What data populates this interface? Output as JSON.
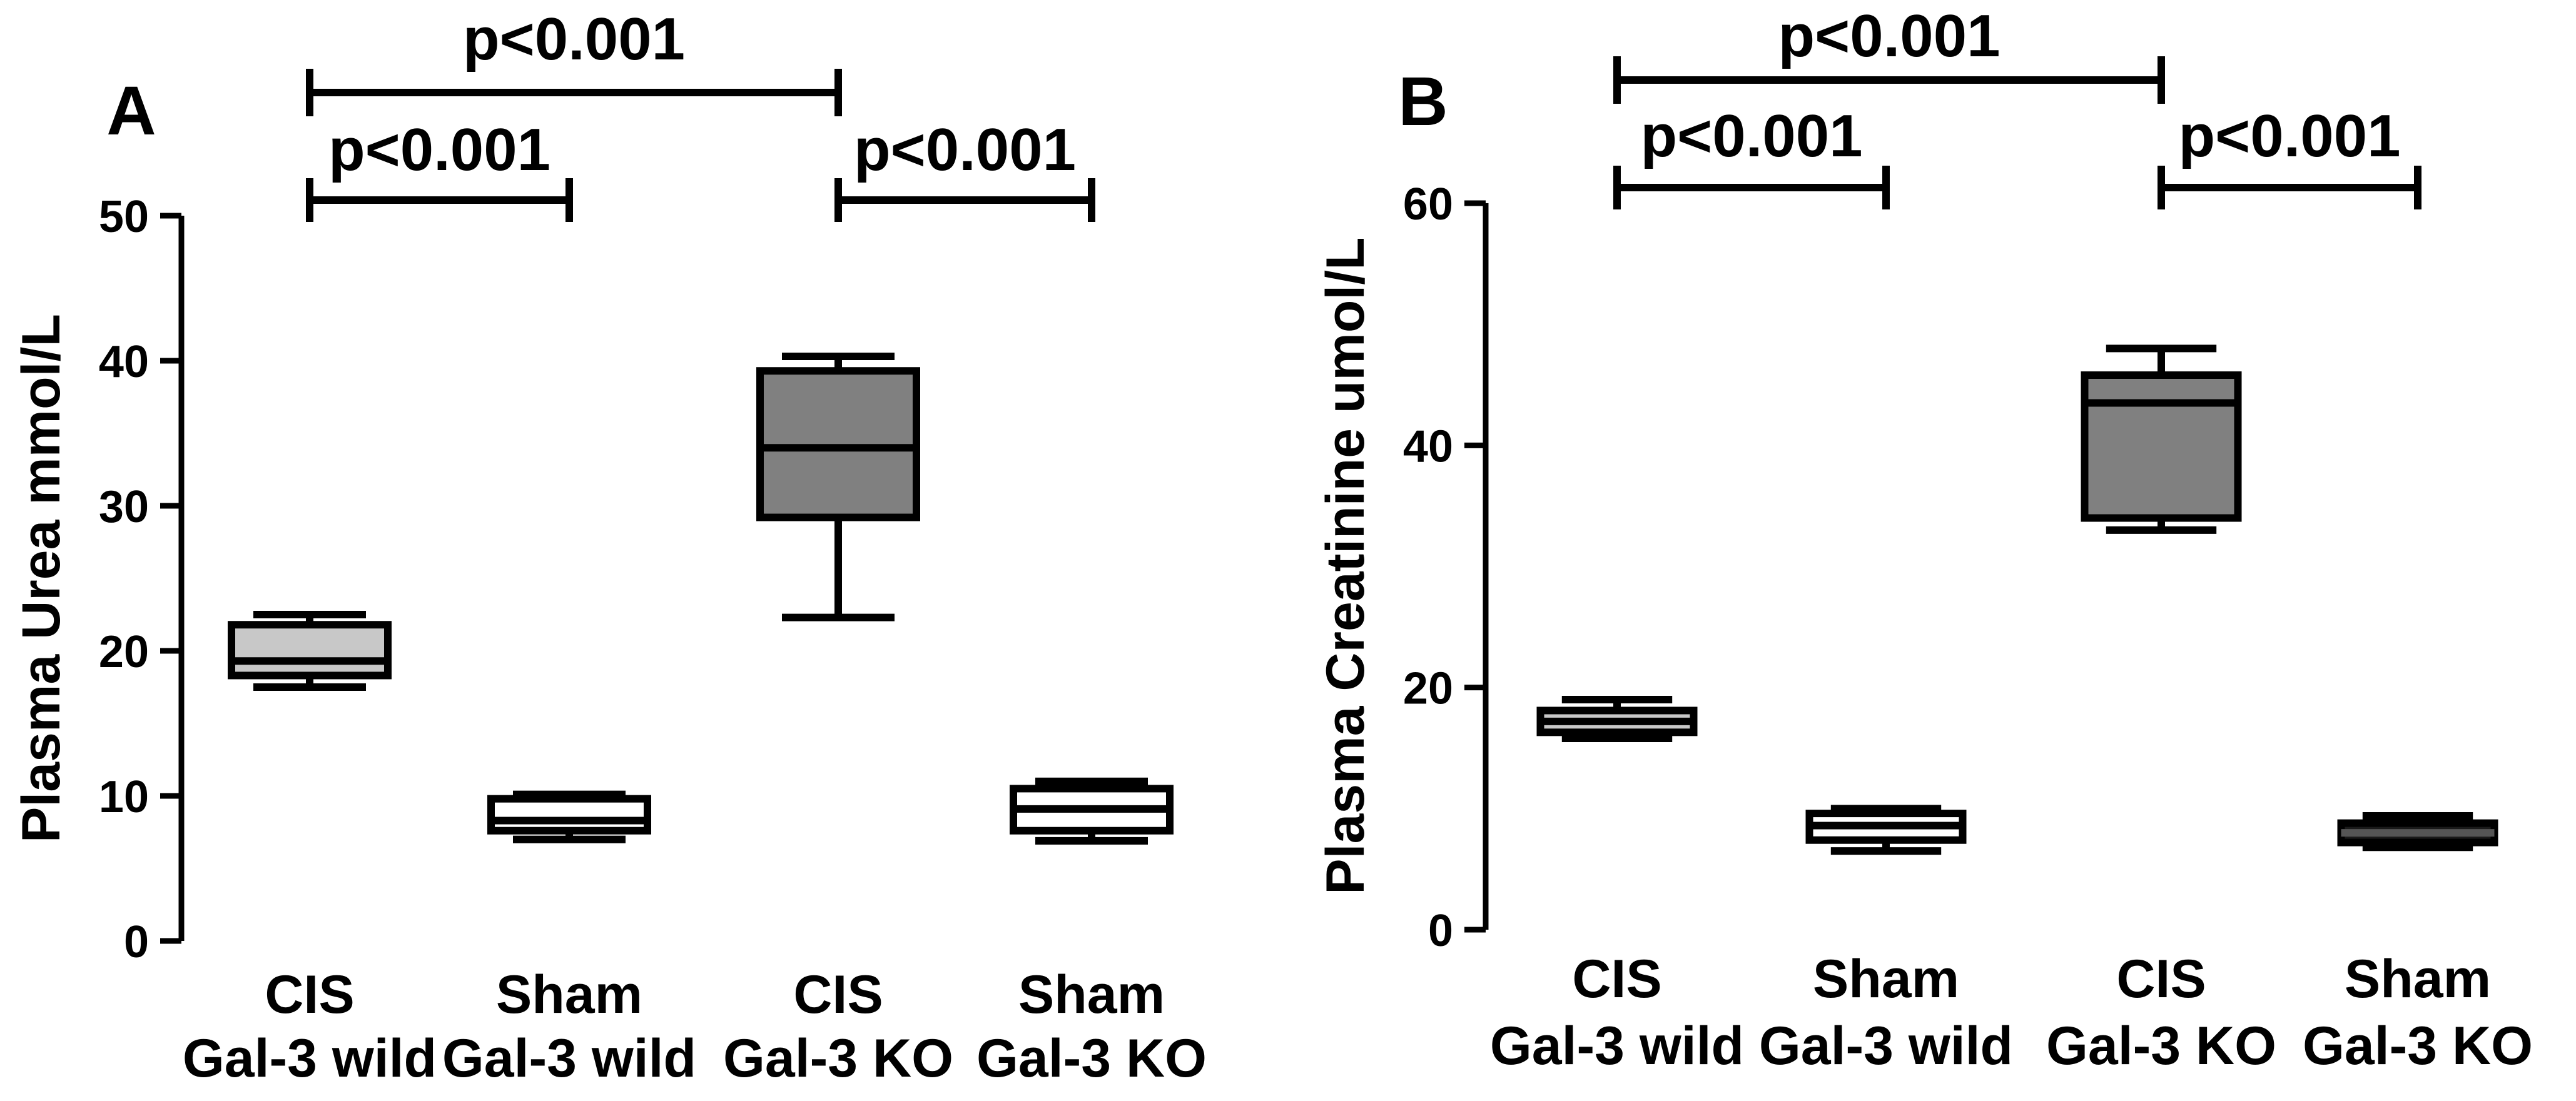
{
  "chart_data": [
    {
      "type": "boxplot",
      "panel_label": "A",
      "ylabel": "Plasma Urea mmol/L",
      "ylim": [
        0,
        50
      ],
      "yticks": [
        0,
        10,
        20,
        30,
        40,
        50
      ],
      "categories": [
        {
          "line1": "CIS",
          "line2": "Gal-3 wild"
        },
        {
          "line1": "Sham",
          "line2": "Gal-3 wild"
        },
        {
          "line1": "CIS",
          "line2": "Gal-3 KO"
        },
        {
          "line1": "Sham",
          "line2": "Gal-3 KO"
        }
      ],
      "boxes": [
        {
          "min": 17.5,
          "q1": 18.3,
          "median": 19.3,
          "q3": 21.8,
          "max": 22.5,
          "fill": "#c8c8c8"
        },
        {
          "min": 7.0,
          "q1": 7.6,
          "median": 8.3,
          "q3": 9.8,
          "max": 10.1,
          "fill": "#ffffff"
        },
        {
          "min": 22.3,
          "q1": 29.2,
          "median": 34.0,
          "q3": 39.3,
          "max": 40.3,
          "fill": "#808080"
        },
        {
          "min": 6.9,
          "q1": 7.6,
          "median": 9.1,
          "q3": 10.5,
          "max": 11.0,
          "fill": "#ffffff"
        }
      ],
      "comparisons": [
        {
          "from": 0,
          "to": 2,
          "label": "p<0.001"
        },
        {
          "from": 0,
          "to": 1,
          "label": "p<0.001"
        },
        {
          "from": 2,
          "to": 3,
          "label": "p<0.001"
        }
      ]
    },
    {
      "type": "boxplot",
      "panel_label": "B",
      "ylabel": "Plasma Creatinine umol/L",
      "ylim": [
        0,
        60
      ],
      "yticks": [
        0,
        20,
        40,
        60
      ],
      "categories": [
        {
          "line1": "CIS",
          "line2": "Gal-3 wild"
        },
        {
          "line1": "Sham",
          "line2": "Gal-3 wild"
        },
        {
          "line1": "CIS",
          "line2": "Gal-3 KO"
        },
        {
          "line1": "Sham",
          "line2": "Gal-3 KO"
        }
      ],
      "boxes": [
        {
          "min": 15.8,
          "q1": 16.3,
          "median": 17.2,
          "q3": 18.1,
          "max": 19.0,
          "fill": "#c8c8c8"
        },
        {
          "min": 6.5,
          "q1": 7.4,
          "median": 8.6,
          "q3": 9.6,
          "max": 10.0,
          "fill": "#ffffff"
        },
        {
          "min": 33.0,
          "q1": 34.0,
          "median": 43.5,
          "q3": 45.8,
          "max": 48.0,
          "fill": "#808080"
        },
        {
          "min": 6.8,
          "q1": 7.2,
          "median": 8.0,
          "q3": 8.8,
          "max": 9.4,
          "fill": "#1a1a1a"
        }
      ],
      "comparisons": [
        {
          "from": 0,
          "to": 2,
          "label": "p<0.001"
        },
        {
          "from": 0,
          "to": 1,
          "label": "p<0.001"
        },
        {
          "from": 2,
          "to": 3,
          "label": "p<0.001"
        }
      ]
    }
  ]
}
